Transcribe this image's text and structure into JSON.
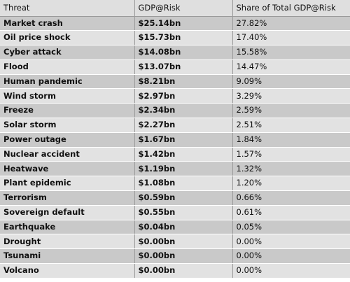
{
  "chart_data": {
    "type": "table",
    "columns": [
      "Threat",
      "GDP@Risk",
      "Share of Total GDP@Risk"
    ],
    "rows": [
      [
        "Market crash",
        "$25.14bn",
        "27.82%"
      ],
      [
        "Oil price shock",
        "$15.73bn",
        "17.40%"
      ],
      [
        "Cyber attack",
        "$14.08bn",
        "15.58%"
      ],
      [
        "Flood",
        "$13.07bn",
        "14.47%"
      ],
      [
        "Human pandemic",
        "$8.21bn",
        "9.09%"
      ],
      [
        "Wind storm",
        "$2.97bn",
        "3.29%"
      ],
      [
        "Freeze",
        "$2.34bn",
        "2.59%"
      ],
      [
        "Solar storm",
        "$2.27bn",
        "2.51%"
      ],
      [
        "Power outage",
        "$1.67bn",
        "1.84%"
      ],
      [
        "Nuclear accident",
        "$1.42bn",
        "1.57%"
      ],
      [
        "Heatwave",
        "$1.19bn",
        "1.32%"
      ],
      [
        "Plant epidemic",
        "$1.08bn",
        "1.20%"
      ],
      [
        "Terrorism",
        "$0.59bn",
        "0.66%"
      ],
      [
        "Sovereign default",
        "$0.55bn",
        "0.61%"
      ],
      [
        "Earthquake",
        "$0.04bn",
        "0.05%"
      ],
      [
        "Drought",
        "$0.00bn",
        "0.00%"
      ],
      [
        "Tsunami",
        "$0.00bn",
        "0.00%"
      ],
      [
        "Volcano",
        "$0.00bn",
        "0.00%"
      ]
    ]
  }
}
